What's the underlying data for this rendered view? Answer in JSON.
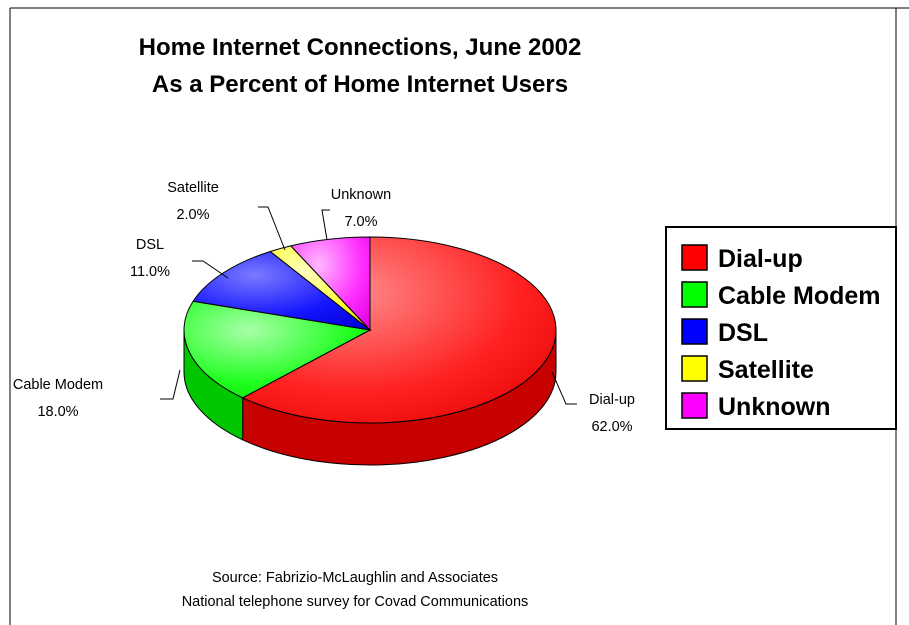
{
  "chart_data": {
    "type": "pie",
    "title_lines": [
      "Home Internet Connections, June 2002",
      "As a Percent of Home Internet Users"
    ],
    "categories": [
      "Dial-up",
      "Cable Modem",
      "DSL",
      "Satellite",
      "Unknown"
    ],
    "values": [
      62.0,
      18.0,
      11.0,
      2.0,
      7.0
    ],
    "value_labels": [
      "62.0%",
      "18.0%",
      "11.0%",
      "2.0%",
      "7.0%"
    ],
    "colors": [
      "#ff0000",
      "#00ff00",
      "#0000ff",
      "#ffff00",
      "#ff00ff"
    ],
    "legend": {
      "entries": [
        "Dial-up",
        "Cable Modem",
        "DSL",
        "Satellite",
        "Unknown"
      ],
      "placement": "right"
    },
    "source_lines": [
      "Source: Fabrizio-McLaughlin and Associates",
      "National telephone survey for Covad Communications"
    ],
    "style": "3d-pie"
  }
}
